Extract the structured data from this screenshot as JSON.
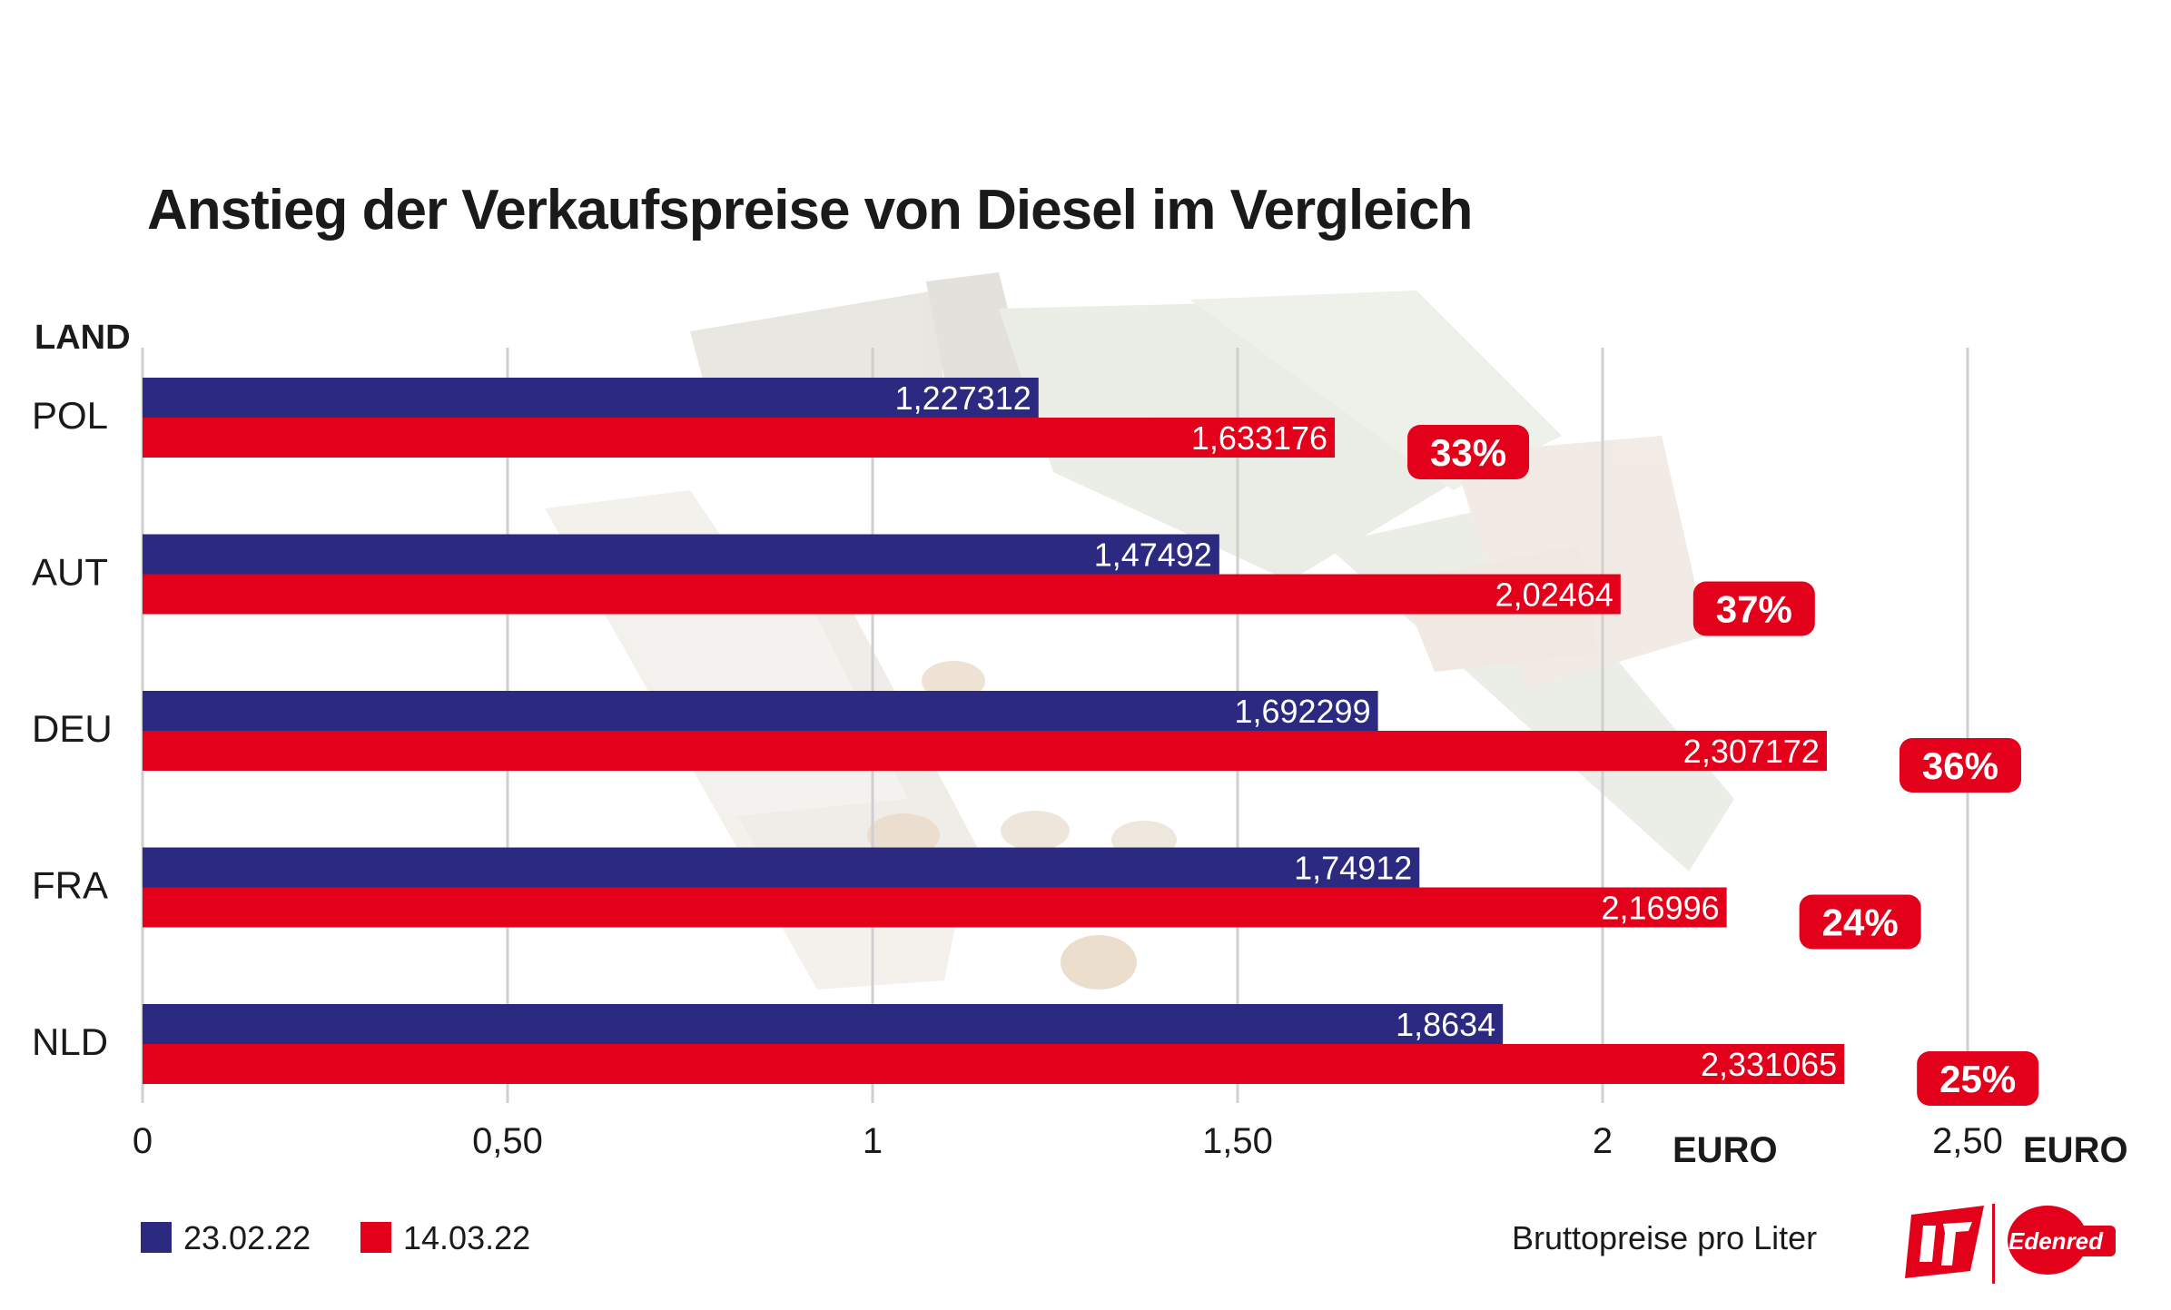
{
  "chart_data": {
    "type": "bar",
    "orientation": "horizontal",
    "title": "Anstieg der Verkaufspreise von Diesel im Vergleich",
    "category_axis_label": "LAND",
    "categories": [
      "POL",
      "AUT",
      "DEU",
      "FRA",
      "NLD"
    ],
    "series": [
      {
        "name": "23.02.22",
        "color": "#2b2a80",
        "values": [
          1.227312,
          1.47492,
          1.692299,
          1.74912,
          1.8634
        ],
        "labels": [
          "1,227312",
          "1,47492",
          "1,692299",
          "1,74912",
          "1,8634"
        ]
      },
      {
        "name": "14.03.22",
        "color": "#e2001a",
        "values": [
          1.633176,
          2.02464,
          2.307172,
          2.16996,
          2.331065
        ],
        "labels": [
          "1,633176",
          "2,02464",
          "2,307172",
          "2,16996",
          "2,331065"
        ]
      }
    ],
    "increase_labels": [
      "33%",
      "37%",
      "36%",
      "24%",
      "25%"
    ],
    "xlim": [
      0,
      2.5
    ],
    "ticks": [
      0,
      0.5,
      1,
      1.5,
      2,
      2.5
    ],
    "tick_labels": [
      "0",
      "0,50",
      "1",
      "1,50",
      "2",
      "2,50"
    ],
    "unit_labels": [
      "EURO",
      "EURO"
    ],
    "grid": "vertical",
    "legend_position": "bottom-left",
    "note": "Bruttopreise pro Liter",
    "logos": [
      "UTA",
      "Edenred"
    ]
  }
}
